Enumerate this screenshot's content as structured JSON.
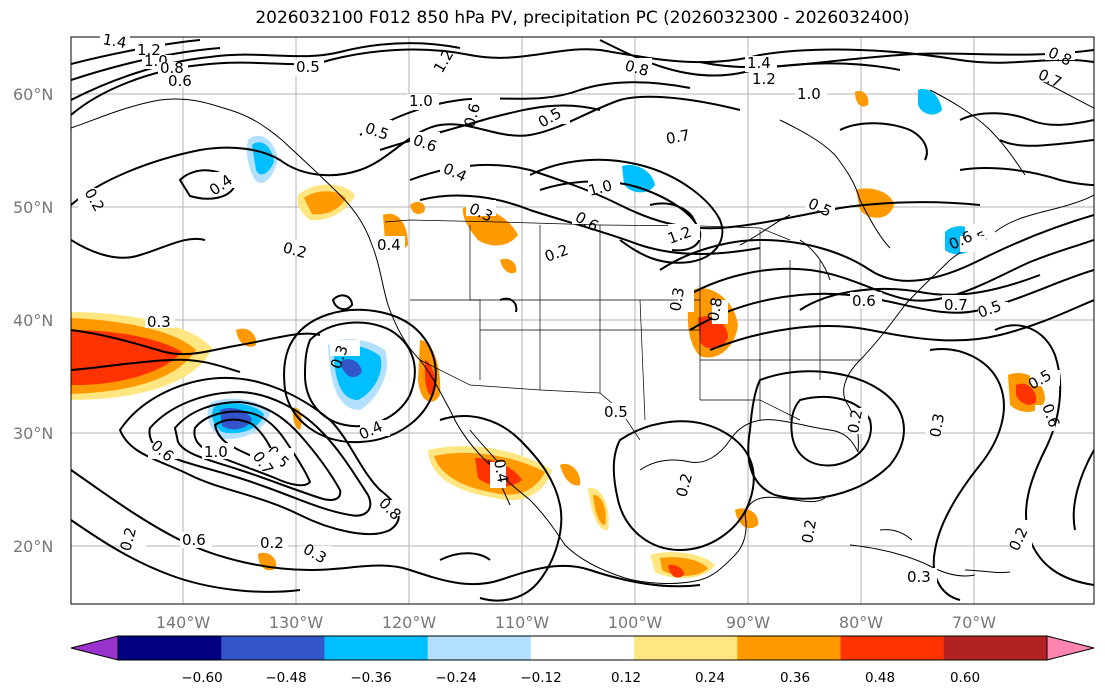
{
  "title": "2026032100 F012 850 hPa PV, precipitation PC (2026032300 - 2026032400)",
  "lat_labels": [
    "60°N",
    "50°N",
    "40°N",
    "30°N",
    "20°N"
  ],
  "lon_labels": [
    "140°W",
    "130°W",
    "120°W",
    "110°W",
    "100°W",
    "90°W",
    "80°W",
    "70°W"
  ],
  "colorbar": {
    "labels": [
      "−0.60",
      "−0.48",
      "−0.36",
      "−0.24",
      "−0.12",
      "0.12",
      "0.24",
      "0.36",
      "0.48",
      "0.60"
    ],
    "colors": [
      "#9933cc",
      "#000080",
      "#3355cc",
      "#00bfff",
      "#b3e0ff",
      "#ffffff",
      "#ffe680",
      "#ff9900",
      "#ff3300",
      "#b22222",
      "#ff85b0"
    ]
  },
  "contour_labels": [
    "1.4",
    "1.2",
    "1.0",
    "0.8",
    "0.6",
    "0.5",
    "1.2",
    "0.8",
    "1.4",
    "1.2",
    "1.0",
    "0.8",
    "0.7",
    "1.0",
    "0.6",
    "0.5",
    "0.5",
    "0.6",
    "0.4",
    "0.3",
    "0.2",
    "0.7",
    "1.0",
    "0.6",
    "1.2",
    "0.5",
    "0.4",
    "0.4",
    "0.2",
    "0.2",
    "0.3",
    "0.3",
    "0.4",
    "1.0",
    "0.5",
    "0.7",
    "0.6",
    "0.8",
    "0.6",
    "0.2",
    "0.3",
    "0.4",
    "0.2",
    "0.3",
    "0.2",
    "0.5",
    "0.6",
    "0.7",
    "0.5",
    "0.2",
    "0.3",
    "0.5",
    "0.6",
    "0.2",
    "0.3",
    "0.2",
    "0.5",
    "0.6",
    "0.8"
  ],
  "colors": {
    "frame": "#000000",
    "grid": "#b3b3b3",
    "contour": "#000000",
    "border": "#000000"
  }
}
